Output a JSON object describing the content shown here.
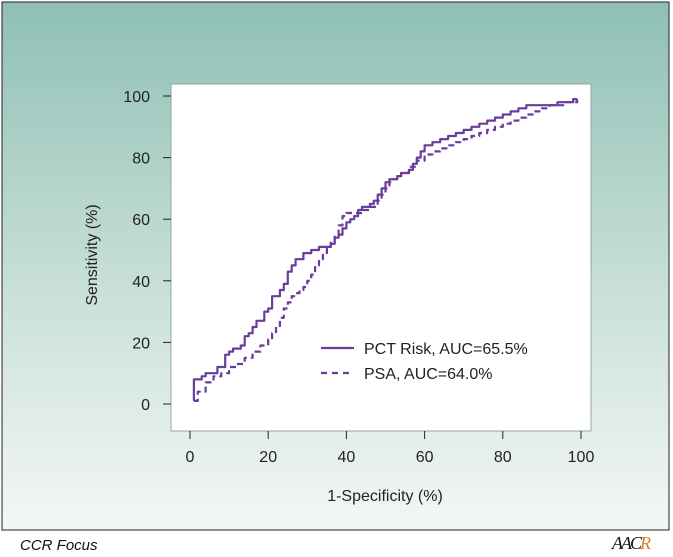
{
  "colors": {
    "bg_top": "#8fc0b4",
    "bg_bottom": "#f4f7f6",
    "plot_bg": "#ffffff",
    "series": "#6a3d9a",
    "axis": "#222222"
  },
  "footer": {
    "left_label": "CCR Focus",
    "logo_text": "AACR"
  },
  "chart_data": {
    "type": "line",
    "title": "",
    "xlabel": "1-Specificity (%)",
    "ylabel": "Sensitivity (%)",
    "xlim": [
      0,
      100
    ],
    "ylim": [
      0,
      100
    ],
    "xticks": [
      "0",
      "20",
      "40",
      "60",
      "80",
      "100"
    ],
    "yticks": [
      "0",
      "20",
      "40",
      "60",
      "80",
      "100"
    ],
    "grid": false,
    "legend_position": "bottom-right",
    "series": [
      {
        "name": "PCT Risk, AUC=65.5%",
        "style": "solid",
        "x": [
          1,
          1,
          1,
          3,
          3,
          4,
          4,
          6,
          7,
          9,
          10,
          11,
          13,
          14,
          15,
          16,
          17,
          19,
          20,
          21,
          23,
          24,
          25,
          26,
          27,
          29,
          31,
          33,
          34,
          35,
          36,
          37,
          38,
          39,
          40,
          41,
          42,
          43,
          44,
          46,
          47,
          48,
          49,
          50,
          51,
          52,
          53,
          54,
          56,
          57,
          58,
          59,
          60,
          62,
          64,
          66,
          68,
          70,
          72,
          74,
          76,
          78,
          80,
          82,
          84,
          86,
          88,
          90,
          92,
          94,
          96,
          98,
          99
        ],
        "y": [
          1,
          6,
          8,
          8,
          9,
          9,
          10,
          10,
          12,
          16,
          17,
          18,
          19,
          22,
          23,
          25,
          27,
          30,
          31,
          35,
          37,
          39,
          43,
          45,
          47,
          49,
          50,
          51,
          51,
          51,
          52,
          54,
          55,
          57,
          59,
          60,
          61,
          63,
          64,
          65,
          66,
          68,
          70,
          72,
          73,
          73,
          74,
          75,
          76,
          78,
          80,
          82,
          84,
          85,
          86,
          87,
          88,
          89,
          90,
          91,
          92,
          93,
          94,
          95,
          96,
          97,
          97,
          97,
          97,
          98,
          98,
          99,
          99
        ]
      },
      {
        "name": "PSA, AUC=64.0%",
        "style": "dashed",
        "x": [
          1,
          2,
          4,
          6,
          8,
          10,
          12,
          14,
          16,
          18,
          20,
          21,
          22,
          23,
          24,
          25,
          26,
          27,
          28,
          29,
          30,
          31,
          32,
          33,
          34,
          35,
          36,
          37,
          38,
          39,
          40,
          42,
          44,
          46,
          48,
          49,
          50,
          51,
          52,
          53,
          54,
          56,
          58,
          60,
          62,
          64,
          66,
          68,
          70,
          72,
          74,
          76,
          78,
          80,
          82,
          84,
          86,
          88,
          90,
          92,
          94,
          96,
          98,
          99
        ],
        "y": [
          1,
          4,
          7,
          9,
          10,
          12,
          13,
          15,
          17,
          19,
          21,
          23,
          25,
          28,
          31,
          33,
          35,
          36,
          37,
          38,
          40,
          42,
          45,
          47,
          49,
          51,
          53,
          55,
          58,
          61,
          62,
          62,
          63,
          64,
          66,
          68,
          70,
          72,
          73,
          74,
          75,
          77,
          79,
          81,
          82,
          83,
          84,
          85,
          86,
          87,
          88,
          89,
          90,
          91,
          92,
          93,
          94,
          95,
          96,
          97,
          97,
          98,
          98,
          99
        ]
      }
    ]
  }
}
